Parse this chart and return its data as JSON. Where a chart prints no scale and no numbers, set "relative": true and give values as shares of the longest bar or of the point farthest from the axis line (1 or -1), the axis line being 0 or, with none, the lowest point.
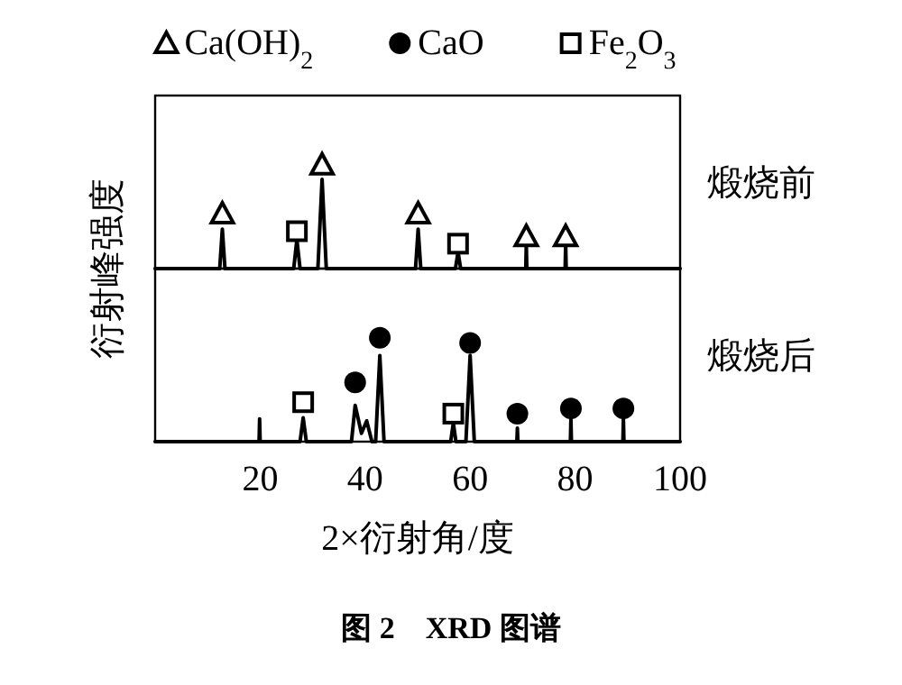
{
  "chart_data": [
    {
      "type": "line",
      "relative": true,
      "xlim": [
        0,
        100
      ],
      "tick_labels": false,
      "legend": "top",
      "ylabel": "衍射峰强度",
      "annotations": [
        "煅烧前"
      ],
      "series": [
        {
          "type": "line",
          "color": "#000000",
          "x": [
            0,
            12.3,
            12.8,
            13.3,
            26.4,
            27.0,
            27.6,
            31.0,
            31.8,
            32.6,
            49.6,
            50.1,
            50.6,
            57.2,
            57.7,
            58.2,
            70.6,
            70.7,
            70.8,
            78.1,
            78.2,
            78.3,
            100
          ],
          "values": [
            0,
            0,
            0.38,
            0,
            0,
            0.28,
            0,
            0,
            0.86,
            0,
            0,
            0.38,
            0,
            0,
            0.16,
            0,
            0,
            0.24,
            0,
            0,
            0.24,
            0,
            0
          ]
        },
        {
          "type": "scatter",
          "name": "Ca(OH)$_{2}$",
          "color": "#000000",
          "marker": "triangle",
          "x": [
            12.8,
            31.8,
            50.1,
            70.7,
            78.2
          ],
          "values": [
            0.53,
            1,
            0.53,
            0.31,
            0.31
          ]
        },
        {
          "type": "scatter",
          "name": "CaO",
          "color": "#000000",
          "marker": "circle"
        },
        {
          "type": "scatter",
          "name": "Fe$_{2}$O$_{3}$",
          "color": "#000000",
          "marker": "square",
          "x": [
            27.0,
            57.7
          ],
          "values": [
            0.36,
            0.24
          ]
        }
      ]
    },
    {
      "type": "line",
      "relative": true,
      "xlim": [
        0,
        100
      ],
      "xticks": [
        20,
        40,
        60,
        80,
        100
      ],
      "tick_labels": "x",
      "xlabel": "2×衍射角/度",
      "annotations": [
        "煅烧后",
        "图 2　XRD 图谱"
      ],
      "series": [
        {
          "type": "line",
          "color": "#000000",
          "x": [
            0,
            19.8,
            19.9,
            20.0,
            27.6,
            28.2,
            28.8,
            37.4,
            38.1,
            39.3,
            40.3,
            41.3,
            42.0,
            42.8,
            43.6,
            56.3,
            56.8,
            57.3,
            59.2,
            60.0,
            60.8,
            68.9,
            69.0,
            69.1,
            79.1,
            79.2,
            79.3,
            89.1,
            89.2,
            89.3,
            100
          ],
          "values": [
            0,
            0,
            0.22,
            0,
            0,
            0.23,
            0,
            0,
            0.35,
            0.08,
            0.2,
            0,
            0,
            0.83,
            0,
            0,
            0.18,
            0,
            0,
            0.83,
            0,
            0,
            0.13,
            0,
            0,
            0.22,
            0,
            0,
            0.22,
            0,
            0
          ]
        },
        {
          "type": "scatter",
          "color": "#000000",
          "marker": "circle",
          "x": [
            38.1,
            42.8,
            60.0,
            69.0,
            79.2,
            89.2
          ],
          "values": [
            0.57,
            1,
            0.95,
            0.27,
            0.32,
            0.32
          ]
        },
        {
          "type": "scatter",
          "color": "#000000",
          "marker": "square",
          "x": [
            28.2,
            56.8
          ],
          "values": [
            0.38,
            0.27
          ]
        }
      ]
    }
  ]
}
